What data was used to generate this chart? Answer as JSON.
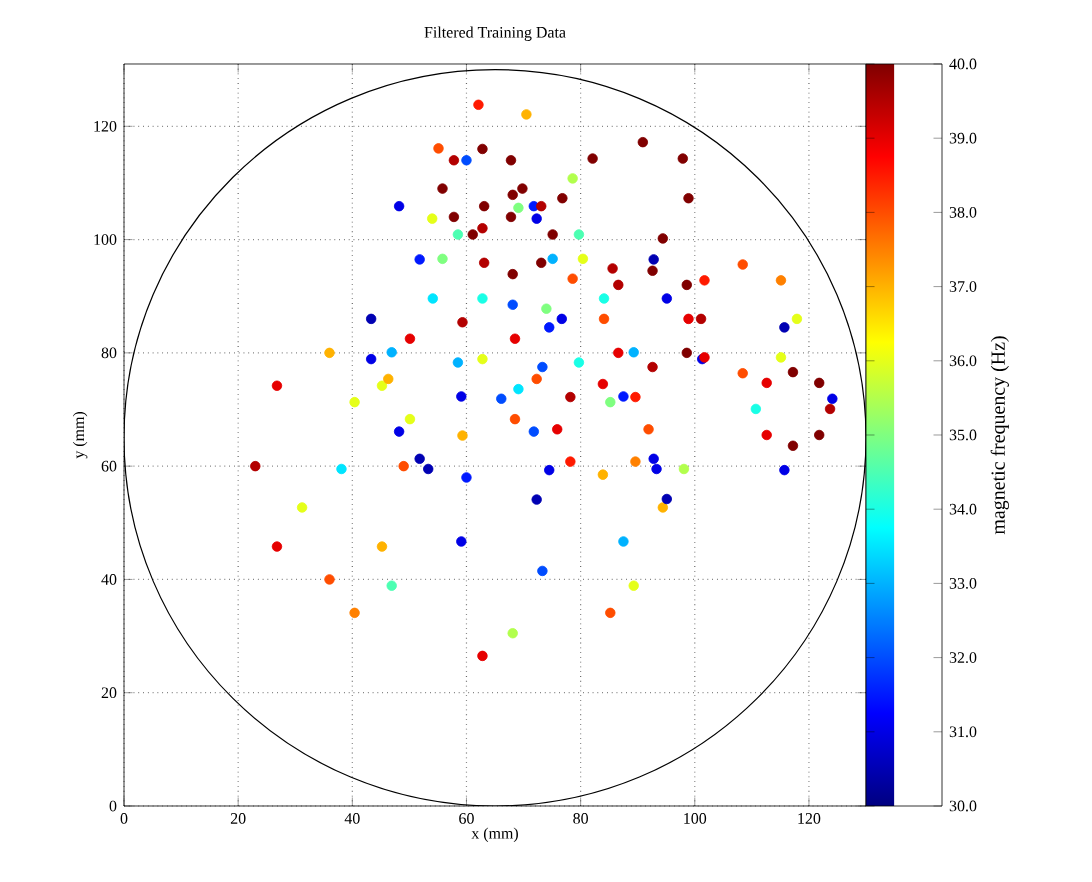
{
  "chart_data": {
    "type": "scatter",
    "title": "Filtered Training Data",
    "xlabel": "x (mm)",
    "ylabel": "y (mm)",
    "clabel": "magnetic frequency (Hz)",
    "marker": "circle",
    "xlim": [
      0,
      130
    ],
    "ylim": [
      0,
      131
    ],
    "xticks": [
      0,
      20,
      40,
      60,
      80,
      100,
      120
    ],
    "yticks": [
      0,
      20,
      40,
      60,
      80,
      100,
      120
    ],
    "grid": true,
    "clim": [
      30,
      40
    ],
    "cticks": [
      {
        "value": 30,
        "label": "30.0"
      },
      {
        "value": 31,
        "label": "31.0"
      },
      {
        "value": 32,
        "label": "32.0"
      },
      {
        "value": 33,
        "label": "33.0"
      },
      {
        "value": 34,
        "label": "34.0"
      },
      {
        "value": 35,
        "label": "35.0"
      },
      {
        "value": 36,
        "label": "36.0"
      },
      {
        "value": 37,
        "label": "37.0"
      },
      {
        "value": 38,
        "label": "38.0"
      },
      {
        "value": 39,
        "label": "39.0"
      },
      {
        "value": 40,
        "label": "40.0"
      }
    ],
    "x": [
      94.4,
      85.2,
      62.8,
      40.4,
      31.2,
      40.4,
      62.8,
      85.2,
      49,
      45.2,
      36,
      26.8,
      23,
      26.8,
      36,
      45.2,
      98.1,
      89.3,
      68.1,
      46.9,
      38.1,
      46.9,
      68.1,
      89.3,
      101.3,
      92.8,
      72.3,
      51.8,
      43.3,
      51.8,
      72.3,
      92.8,
      124.1,
      115.7,
      95.1,
      74.5,
      66.1,
      74.5,
      95.1,
      115.7,
      93.3,
      87.5,
      73.3,
      59.1,
      53.3,
      59.1,
      73.3,
      87.5,
      76.7,
      71.8,
      60,
      48.2,
      43.3,
      48.2,
      60,
      71.8,
      84.1,
      79.7,
      69.1,
      58.5,
      54.1,
      58.5,
      69.1,
      79.7,
      54,
      55.1,
      62.1,
      70.5,
      78.6,
      80.4,
      74,
      62.8,
      55.8,
      72.3,
      68.5,
      59.3,
      50.1,
      46.3,
      50.1,
      59.3,
      68.5,
      91.9,
      89.6,
      83.9,
      78.2,
      75.9,
      78.2,
      83.9,
      89.6,
      101.1,
      98.6,
      92.6,
      86.6,
      84.1,
      86.6,
      92.6,
      98.6,
      117.9,
      115.1,
      108.4,
      101.7,
      98.9,
      101.7,
      108.4,
      115.1,
      123.7,
      121.8,
      117.2,
      112.6,
      110.7,
      112.6,
      117.2,
      121.8,
      75.1,
      76.8,
      82.1,
      90.9,
      97.9,
      98.9,
      94.4,
      85.6,
      78.6,
      69.8,
      67.8,
      62.8,
      57.8,
      55.8,
      57.8,
      62.8,
      67.8,
      75.1,
      73.1,
      68.1,
      63.1,
      61.1,
      63.1,
      68.1,
      73.1
    ],
    "values": [
      52.7,
      71.3,
      78.9,
      71.3,
      52.7,
      34.1,
      26.5,
      34.1,
      60,
      74.2,
      80,
      74.2,
      60,
      45.8,
      40,
      45.8,
      59.5,
      80.1,
      88.5,
      80.1,
      59.5,
      38.9,
      30.5,
      38.9,
      78.9,
      96.5,
      103.7,
      96.5,
      78.9,
      61.3,
      54.1,
      61.3,
      71.9,
      84.5,
      89.6,
      84.5,
      71.9,
      59.3,
      54.2,
      59.3,
      59.5,
      72.3,
      77.5,
      72.3,
      59.5,
      46.7,
      41.5,
      46.7,
      86,
      105.9,
      114,
      105.9,
      86,
      66.1,
      58,
      66.1,
      89.6,
      100.9,
      105.6,
      100.9,
      89.6,
      78.3,
      73.6,
      78.3,
      103.7,
      116.1,
      123.8,
      122.1,
      110.8,
      96.6,
      87.8,
      89.6,
      96.6,
      75.4,
      82.5,
      85.4,
      82.5,
      75.4,
      68.3,
      65.4,
      68.3,
      66.5,
      72.2,
      74.5,
      72.2,
      66.5,
      60.8,
      58.5,
      60.8,
      86,
      92,
      94.5,
      92,
      86,
      80,
      77.5,
      80,
      86,
      92.8,
      95.6,
      92.8,
      86,
      79.2,
      76.4,
      79.2,
      70.1,
      74.7,
      76.6,
      74.7,
      70.1,
      65.5,
      63.6,
      65.5,
      96.6,
      107.3,
      114.3,
      117.2,
      114.3,
      107.3,
      100.2,
      94.9,
      93.1,
      109,
      114,
      116,
      114,
      109,
      104,
      102,
      104,
      100.9,
      105.9,
      107.9,
      105.9,
      100.9,
      95.9,
      93.9,
      95.9
    ],
    "cvalues": [
      37,
      35,
      36,
      36,
      36,
      37.5,
      39,
      38,
      38,
      36,
      37,
      39,
      39.5,
      39,
      38,
      37,
      35.5,
      33,
      32,
      33,
      33.5,
      34.5,
      35.5,
      36,
      31,
      30.5,
      31,
      31.5,
      31,
      30.5,
      30.5,
      31,
      31,
      30.5,
      31,
      31.5,
      32,
      31,
      30.5,
      31,
      31,
      31.5,
      32,
      31,
      30.5,
      31,
      32,
      33,
      31,
      31.5,
      32,
      31,
      30.5,
      31,
      31.5,
      32,
      34,
      34.5,
      35,
      34.5,
      33.5,
      33,
      33.5,
      34,
      36,
      38,
      38.5,
      37,
      35.5,
      36,
      35,
      34,
      35,
      38,
      39,
      39.5,
      39,
      37,
      36,
      37,
      38,
      38,
      38.5,
      39,
      39.5,
      39,
      38.5,
      37,
      37.5,
      39.5,
      40,
      40,
      39.5,
      38,
      39,
      39.5,
      40,
      36,
      37.5,
      38,
      38.5,
      39,
      39,
      38,
      36,
      39.5,
      40,
      40,
      39,
      34,
      39,
      40,
      40,
      33,
      40,
      40,
      40,
      40,
      40,
      40,
      39.5,
      38,
      40,
      40,
      40,
      39.5,
      40,
      40,
      39.5,
      40,
      40,
      39.5,
      40,
      40,
      40,
      39.5,
      40,
      40
    ]
  }
}
